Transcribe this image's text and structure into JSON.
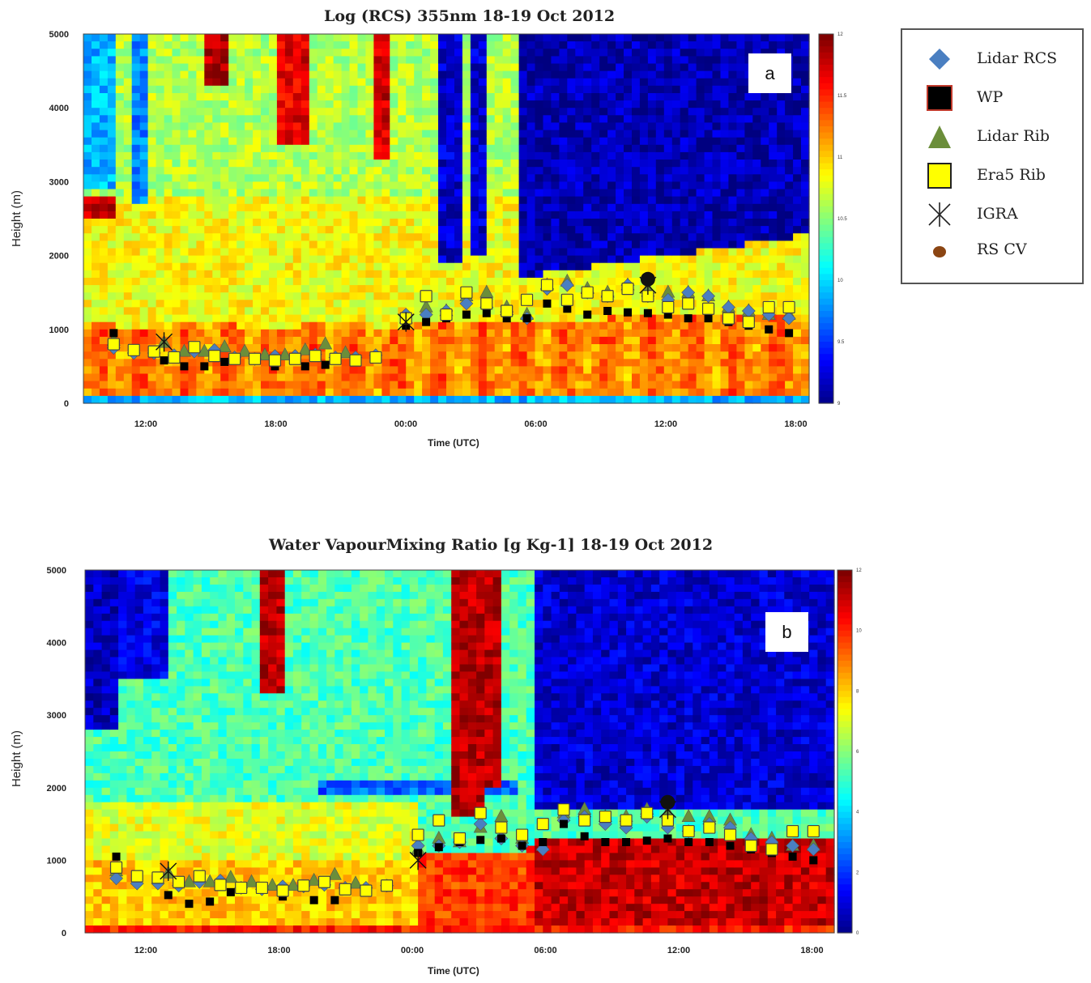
{
  "chart_data": [
    {
      "type": "heatmap",
      "panel_label": "a",
      "title": "Log (RCS) 355nm 18-19 Oct 2012",
      "xlabel": "Time (UTC)",
      "ylabel": "Height (m)",
      "x_ticks": [
        "12:00",
        "18:00",
        "00:00",
        "06:00",
        "12:00",
        "18:00"
      ],
      "y_ticks": [
        "0",
        "1000",
        "2000",
        "3000",
        "4000",
        "5000"
      ],
      "ylim": [
        0,
        5000
      ],
      "colorbar_ticks": [
        "9",
        "9.5",
        "10",
        "10.5",
        "11",
        "11.5",
        "12"
      ],
      "colorbar_range": [
        9,
        12
      ],
      "colormap": "jet",
      "series": [
        {
          "name": "Lidar RCS",
          "marker": "diamond",
          "color": "#4a7fc1",
          "x": [
            9.5,
            10.5,
            11.5,
            12.5,
            13.5,
            14.5,
            15.5,
            16.5,
            17.5,
            18.5,
            19.5,
            20.5,
            21.5,
            22.5,
            24,
            25,
            26,
            27,
            28,
            29,
            30,
            31,
            32,
            33,
            34,
            35,
            36,
            37,
            38,
            39,
            40,
            41,
            42,
            43
          ],
          "y": [
            750,
            680,
            680,
            650,
            700,
            720,
            620,
            600,
            640,
            640,
            660,
            620,
            620,
            650,
            1200,
            1200,
            1250,
            1350,
            1300,
            1200,
            1150,
            1550,
            1600,
            1500,
            1450,
            1600,
            1450,
            1400,
            1500,
            1450,
            1300,
            1250,
            1200,
            1150
          ]
        },
        {
          "name": "WP",
          "marker": "square",
          "color": "#000000",
          "x": [
            9.5,
            12,
            13,
            14,
            15,
            17.5,
            19,
            20,
            24,
            25,
            26,
            27,
            28,
            29,
            30,
            31,
            32,
            33,
            34,
            35,
            36,
            37,
            38,
            39,
            40,
            41,
            42,
            43
          ],
          "y": [
            950,
            580,
            500,
            500,
            560,
            500,
            500,
            520,
            1050,
            1100,
            1150,
            1200,
            1220,
            1150,
            1150,
            1350,
            1280,
            1200,
            1250,
            1230,
            1220,
            1200,
            1150,
            1150,
            1100,
            1050,
            1000,
            950
          ]
        },
        {
          "name": "Lidar Rib",
          "marker": "triangle",
          "color": "#6b8e3a",
          "x": [
            9.5,
            12,
            13,
            14,
            15,
            16,
            17,
            18,
            19,
            20,
            21,
            24,
            25,
            26,
            27,
            28,
            29,
            30,
            31,
            32,
            33,
            34,
            35,
            36,
            37,
            38,
            39,
            40,
            41,
            42,
            43
          ],
          "y": [
            850,
            820,
            700,
            700,
            760,
            700,
            650,
            650,
            720,
            800,
            680,
            1150,
            1300,
            1250,
            1450,
            1500,
            1300,
            1200,
            1600,
            1650,
            1550,
            1500,
            1600,
            1550,
            1500,
            1500,
            1450,
            1300,
            1250,
            1200,
            1200
          ]
        },
        {
          "name": "Era5 Rib",
          "marker": "square",
          "color": "#ffff00",
          "x": [
            9.5,
            10.5,
            11.5,
            12.5,
            13.5,
            14.5,
            15.5,
            16.5,
            17.5,
            18.5,
            19.5,
            20.5,
            21.5,
            22.5,
            24,
            25,
            26,
            27,
            28,
            29,
            30,
            31,
            32,
            33,
            34,
            35,
            36,
            37,
            38,
            39,
            40,
            41,
            42,
            43
          ],
          "y": [
            800,
            720,
            700,
            620,
            760,
            640,
            600,
            600,
            580,
            600,
            640,
            600,
            580,
            620,
            1150,
            1450,
            1200,
            1500,
            1350,
            1250,
            1400,
            1600,
            1400,
            1500,
            1450,
            1550,
            1450,
            1300,
            1350,
            1280,
            1150,
            1100,
            1300,
            1300
          ]
        },
        {
          "name": "IGRA",
          "marker": "star",
          "color": "#111111",
          "x": [
            12,
            24,
            36
          ],
          "y": [
            830,
            1100,
            1600
          ]
        },
        {
          "name": "RS CV",
          "marker": "circle",
          "color": "#8b4513",
          "x": [
            36
          ],
          "y": [
            1680
          ]
        }
      ]
    },
    {
      "type": "heatmap",
      "panel_label": "b",
      "title": "Water VapourMixing Ratio [g Kg-1]  18-19 Oct 2012",
      "xlabel": "Time (UTC)",
      "ylabel": "Height (m)",
      "x_ticks": [
        "12:00",
        "18:00",
        "00:00",
        "06:00",
        "12:00",
        "18:00"
      ],
      "y_ticks": [
        "0",
        "1000",
        "2000",
        "3000",
        "4000",
        "5000"
      ],
      "ylim": [
        0,
        5000
      ],
      "colorbar_ticks": [
        "0",
        "2",
        "4",
        "6",
        "8",
        "10",
        "12"
      ],
      "colorbar_range": [
        0,
        12
      ],
      "colormap": "jet",
      "series": [
        {
          "name": "Lidar RCS",
          "marker": "diamond",
          "color": "#4a7fc1",
          "x": [
            9.5,
            10.5,
            11.5,
            12.5,
            13.5,
            14.5,
            15.5,
            16.5,
            17.5,
            18.5,
            19.5,
            20.5,
            21.5,
            22.5,
            24,
            25,
            26,
            27,
            28,
            29,
            30,
            31,
            32,
            33,
            34,
            35,
            36,
            37,
            38,
            39,
            40,
            41,
            42,
            43
          ],
          "y": [
            750,
            680,
            680,
            650,
            700,
            720,
            620,
            600,
            640,
            640,
            660,
            620,
            620,
            650,
            1200,
            1200,
            1250,
            1500,
            1300,
            1200,
            1150,
            1550,
            1600,
            1500,
            1450,
            1600,
            1450,
            1400,
            1500,
            1450,
            1300,
            1250,
            1200,
            1150
          ]
        },
        {
          "name": "WP",
          "marker": "square",
          "color": "#000000",
          "x": [
            9.5,
            12,
            13,
            14,
            15,
            17.5,
            19,
            20,
            24,
            25,
            26,
            27,
            28,
            29,
            30,
            31,
            32,
            33,
            34,
            35,
            36,
            37,
            38,
            39,
            40,
            41,
            42,
            43
          ],
          "y": [
            1050,
            520,
            400,
            430,
            560,
            500,
            450,
            450,
            1100,
            1180,
            1250,
            1280,
            1300,
            1200,
            1250,
            1500,
            1330,
            1250,
            1250,
            1270,
            1300,
            1250,
            1250,
            1200,
            1150,
            1100,
            1050,
            1000
          ]
        },
        {
          "name": "Lidar Rib",
          "marker": "triangle",
          "color": "#6b8e3a",
          "x": [
            9.5,
            12,
            13,
            14,
            15,
            16,
            17,
            18,
            19,
            20,
            21,
            24,
            25,
            26,
            27,
            28,
            29,
            30,
            31,
            32,
            33,
            34,
            35,
            36,
            37,
            38,
            39,
            40,
            41,
            42,
            43
          ],
          "y": [
            850,
            820,
            700,
            700,
            760,
            700,
            650,
            650,
            720,
            800,
            680,
            1150,
            1300,
            1250,
            1450,
            1600,
            1300,
            1200,
            1650,
            1700,
            1600,
            1600,
            1700,
            1650,
            1600,
            1600,
            1550,
            1350,
            1300,
            1200,
            1200
          ]
        },
        {
          "name": "Era5 Rib",
          "marker": "square",
          "color": "#ffff00",
          "x": [
            9.5,
            10.5,
            11.5,
            12.5,
            13.5,
            14.5,
            15.5,
            16.5,
            17.5,
            18.5,
            19.5,
            20.5,
            21.5,
            22.5,
            24,
            25,
            26,
            27,
            28,
            29,
            30,
            31,
            32,
            33,
            34,
            35,
            36,
            37,
            38,
            39,
            40,
            41,
            42,
            43
          ],
          "y": [
            900,
            780,
            760,
            700,
            780,
            660,
            620,
            620,
            580,
            650,
            700,
            600,
            580,
            650,
            1350,
            1550,
            1300,
            1650,
            1450,
            1350,
            1500,
            1700,
            1550,
            1600,
            1550,
            1650,
            1550,
            1400,
            1450,
            1350,
            1200,
            1150,
            1400,
            1400
          ]
        },
        {
          "name": "IGRA",
          "marker": "star",
          "color": "#111111",
          "x": [
            12,
            24,
            36
          ],
          "y": [
            850,
            1000,
            1700
          ]
        },
        {
          "name": "RS CV",
          "marker": "circle",
          "color": "#8b4513",
          "x": [
            36
          ],
          "y": [
            1800
          ]
        }
      ]
    }
  ],
  "legend": {
    "items": [
      {
        "label": "Lidar RCS",
        "marker": "diamond",
        "fill": "#4a7fc1",
        "stroke": "#4a7fc1"
      },
      {
        "label": "WP",
        "marker": "square",
        "fill": "#000000",
        "stroke": "#c0392b"
      },
      {
        "label": "Lidar Rib",
        "marker": "triangle",
        "fill": "#6b8e3a",
        "stroke": "#6b8e3a"
      },
      {
        "label": "Era5 Rib",
        "marker": "square",
        "fill": "#ffff00",
        "stroke": "#222222"
      },
      {
        "label": "IGRA",
        "marker": "star",
        "fill": "none",
        "stroke": "#222222"
      },
      {
        "label": "RS CV",
        "marker": "circle",
        "fill": "#8b4513",
        "stroke": "#8b4513"
      }
    ]
  }
}
